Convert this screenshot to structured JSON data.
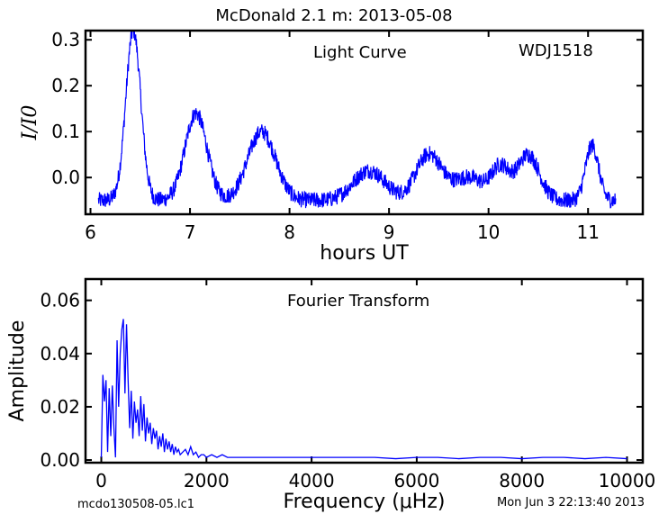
{
  "figure": {
    "title": "McDonald 2.1 m:  2013-05-08",
    "footer_left": "mcdo130508-05.lc1",
    "footer_right": "Mon Jun  3 22:13:40 2013"
  },
  "chart_data": [
    {
      "type": "line",
      "panel": "top",
      "title": "Light Curve",
      "annotation": "WDJ1518",
      "xlabel": "hours UT",
      "ylabel": "I/I0",
      "xlim": [
        5.95,
        11.55
      ],
      "ylim": [
        -0.08,
        0.32
      ],
      "xticks": [
        6,
        7,
        8,
        9,
        10,
        11
      ],
      "yticks": [
        0.0,
        0.1,
        0.2,
        0.3
      ],
      "ytick_labels": [
        "0.0",
        "0.1",
        "0.2",
        "0.3"
      ],
      "color": "#0000ff",
      "x_range": [
        6.08,
        11.28
      ],
      "sample_step_hours": 0.0035,
      "noise_amplitude": 0.018,
      "baseline": -0.05,
      "pulses": [
        {
          "center": 6.43,
          "amplitude": 0.37,
          "width": 0.075
        },
        {
          "center": 7.06,
          "amplitude": 0.19,
          "width": 0.11
        },
        {
          "center": 7.72,
          "amplitude": 0.15,
          "width": 0.14
        },
        {
          "center": 8.8,
          "amplitude": 0.065,
          "width": 0.16
        },
        {
          "center": 9.4,
          "amplitude": 0.1,
          "width": 0.13
        },
        {
          "center": 9.8,
          "amplitude": 0.05,
          "width": 0.15
        },
        {
          "center": 10.12,
          "amplitude": 0.07,
          "width": 0.09
        },
        {
          "center": 10.4,
          "amplitude": 0.1,
          "width": 0.11
        },
        {
          "center": 11.04,
          "amplitude": 0.12,
          "width": 0.065
        }
      ]
    },
    {
      "type": "line",
      "panel": "bottom",
      "title": "Fourier Transform",
      "xlabel": "Frequency (μHz)",
      "ylabel": "Amplitude",
      "xlim": [
        -300,
        10300
      ],
      "ylim": [
        -0.001,
        0.068
      ],
      "xticks": [
        0,
        2000,
        4000,
        6000,
        8000,
        10000
      ],
      "yticks": [
        0.0,
        0.02,
        0.04,
        0.06
      ],
      "ytick_labels": [
        "0.00",
        "0.02",
        "0.04",
        "0.06"
      ],
      "color": "#0000ff",
      "x": [
        0,
        30,
        60,
        90,
        120,
        150,
        180,
        210,
        240,
        270,
        300,
        330,
        360,
        390,
        420,
        450,
        480,
        510,
        540,
        570,
        600,
        630,
        660,
        690,
        720,
        750,
        780,
        810,
        840,
        870,
        900,
        930,
        960,
        990,
        1020,
        1050,
        1080,
        1110,
        1140,
        1170,
        1200,
        1230,
        1260,
        1290,
        1320,
        1350,
        1380,
        1410,
        1440,
        1470,
        1500,
        1550,
        1600,
        1650,
        1700,
        1750,
        1800,
        1850,
        1900,
        1950,
        2000,
        2100,
        2200,
        2300,
        2400,
        2500,
        2700,
        2900,
        3100,
        3400,
        3700,
        4000,
        4400,
        4800,
        5200,
        5600,
        6000,
        6400,
        6800,
        7200,
        7600,
        8000,
        8400,
        8800,
        9200,
        9600,
        10000
      ],
      "y": [
        0.001,
        0.032,
        0.022,
        0.03,
        0.003,
        0.027,
        0.009,
        0.028,
        0.012,
        0.001,
        0.045,
        0.02,
        0.04,
        0.049,
        0.053,
        0.025,
        0.051,
        0.03,
        0.012,
        0.026,
        0.008,
        0.022,
        0.014,
        0.019,
        0.009,
        0.024,
        0.011,
        0.021,
        0.007,
        0.016,
        0.01,
        0.014,
        0.006,
        0.012,
        0.008,
        0.011,
        0.004,
        0.009,
        0.005,
        0.01,
        0.003,
        0.008,
        0.004,
        0.007,
        0.003,
        0.006,
        0.002,
        0.005,
        0.003,
        0.004,
        0.002,
        0.003,
        0.004,
        0.002,
        0.005,
        0.002,
        0.003,
        0.001,
        0.002,
        0.002,
        0.001,
        0.002,
        0.001,
        0.002,
        0.001,
        0.001,
        0.001,
        0.001,
        0.001,
        0.001,
        0.001,
        0.001,
        0.001,
        0.001,
        0.001,
        0.0005,
        0.001,
        0.001,
        0.0005,
        0.001,
        0.001,
        0.0005,
        0.001,
        0.001,
        0.0005,
        0.001,
        0.0005
      ]
    }
  ]
}
